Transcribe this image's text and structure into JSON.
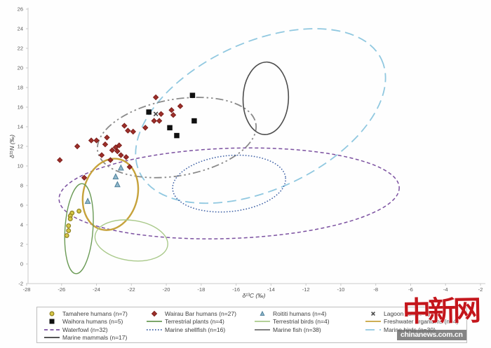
{
  "watermark": {
    "logo_text": "中新网",
    "site_text": "chinanews.com.cn"
  },
  "chart_data": {
    "type": "scatter",
    "title": "",
    "xlabel": "δ¹³C (‰)",
    "ylabel": "δ¹⁵N (‰)",
    "xlim": [
      -28,
      -2
    ],
    "ylim": [
      -2,
      26
    ],
    "xticks": [
      -28,
      -26,
      -24,
      -22,
      -20,
      -18,
      -16,
      -14,
      -12,
      -10,
      -8,
      -6,
      -4,
      -2
    ],
    "yticks": [
      -2,
      0,
      2,
      4,
      6,
      8,
      10,
      12,
      14,
      16,
      18,
      20,
      22,
      24,
      26
    ],
    "grid": false,
    "legend_position": "bottom",
    "series": [
      {
        "id": "tamahere-humans",
        "name": "Tamahere humans (n=7)",
        "marker": "circle",
        "fill": "#d6c84a",
        "stroke": "#8f7f1e",
        "size": 6,
        "points": [
          [
            -25.0,
            5.4
          ],
          [
            -25.4,
            5.2
          ],
          [
            -25.5,
            4.9
          ],
          [
            -25.5,
            4.6
          ],
          [
            -25.6,
            3.9
          ],
          [
            -25.6,
            3.4
          ],
          [
            -25.7,
            2.9
          ]
        ]
      },
      {
        "id": "wairau-bar-humans",
        "name": "Wairau Bar humans (n=27)",
        "marker": "diamond",
        "fill": "#9e2f2a",
        "stroke": "#7c1f1b",
        "size": 7,
        "points": [
          [
            -20.6,
            17.0
          ],
          [
            -19.2,
            16.1
          ],
          [
            -19.7,
            15.7
          ],
          [
            -19.6,
            15.2
          ],
          [
            -20.3,
            15.3
          ],
          [
            -20.7,
            14.6
          ],
          [
            -20.4,
            14.6
          ],
          [
            -21.2,
            13.9
          ],
          [
            -22.4,
            14.1
          ],
          [
            -22.2,
            13.6
          ],
          [
            -21.9,
            13.5
          ],
          [
            -23.4,
            12.9
          ],
          [
            -24.0,
            12.6
          ],
          [
            -24.3,
            12.6
          ],
          [
            -25.1,
            12.0
          ],
          [
            -22.9,
            11.9
          ],
          [
            -22.7,
            12.1
          ],
          [
            -23.1,
            11.6
          ],
          [
            -22.8,
            11.5
          ],
          [
            -22.6,
            11.1
          ],
          [
            -22.3,
            10.9
          ],
          [
            -23.7,
            11.1
          ],
          [
            -26.1,
            10.6
          ],
          [
            -23.2,
            10.6
          ],
          [
            -22.1,
            9.9
          ],
          [
            -24.7,
            8.8
          ],
          [
            -23.5,
            12.2
          ]
        ]
      },
      {
        "id": "roititi-humans",
        "name": "Roititi humans (n=4)",
        "marker": "triangle",
        "fill": "#8fb8cc",
        "stroke": "#4e7f99",
        "size": 8,
        "points": [
          [
            -22.6,
            9.8
          ],
          [
            -22.9,
            8.9
          ],
          [
            -22.8,
            8.1
          ],
          [
            -24.5,
            6.4
          ]
        ]
      },
      {
        "id": "lagoon-fish",
        "name": "Lagoon fish (n=4)",
        "marker": "x",
        "fill": "none",
        "stroke": "#4a4a4a",
        "size": 7,
        "points": [
          [
            -20.6,
            15.3
          ]
        ]
      },
      {
        "id": "waihora-humans",
        "name": "Waihora humans (n=5)",
        "marker": "square",
        "fill": "#101010",
        "stroke": "#101010",
        "size": 6.5,
        "points": [
          [
            -18.5,
            17.2
          ],
          [
            -21.0,
            15.5
          ],
          [
            -18.4,
            14.6
          ],
          [
            -19.8,
            13.9
          ],
          [
            -19.4,
            13.1
          ]
        ]
      }
    ],
    "ellipses": [
      {
        "id": "marine-birds",
        "name": "Marine birds (n=30)",
        "cx": -14.6,
        "cy": 15.1,
        "rx": 7.65,
        "ry": 7.5,
        "rot": -25,
        "color": "#90c8e0",
        "dash": "longdash",
        "sw": 1.8
      },
      {
        "id": "waterfowl",
        "name": "Waterfowl (n=32)",
        "cx": -16.4,
        "cy": 7.2,
        "rx": 9.75,
        "ry": 4.6,
        "rot": -2,
        "color": "#7b50a0",
        "dash": "dashed",
        "sw": 1.5
      },
      {
        "id": "marine-fish",
        "name": "Marine fish (n=38)",
        "cx": -19.4,
        "cy": 12.9,
        "rx": 4.6,
        "ry": 3.9,
        "rot": -10,
        "color": "#8a8a8a",
        "dash": "dashdot",
        "sw": 1.8
      },
      {
        "id": "marine-shellfish",
        "name": "Marine shellfish (n=16)",
        "cx": -16.4,
        "cy": 8.2,
        "rx": 3.25,
        "ry": 2.85,
        "rot": -6,
        "color": "#3c5fa5",
        "dash": "dotted",
        "sw": 1.5
      },
      {
        "id": "marine-mammals",
        "name": "Marine mammals (n=17)",
        "cx": -14.3,
        "cy": 16.9,
        "rx": 1.3,
        "ry": 3.7,
        "rot": 2,
        "color": "#4d4d4d",
        "dash": "solid",
        "sw": 1.6
      },
      {
        "id": "freshwater-organisms",
        "name": "Freshwater organisms (n=4)",
        "cx": -23.2,
        "cy": 7.1,
        "rx": 1.55,
        "ry": 3.7,
        "rot": 15,
        "color": "#c6a23b",
        "dash": "solid",
        "sw": 2.4
      },
      {
        "id": "terrestrial-plants",
        "name": "Terrestrial plants (n=4)",
        "cx": -25.0,
        "cy": 3.6,
        "rx": 0.8,
        "ry": 4.6,
        "rot": 4,
        "color": "#6a9a55",
        "dash": "solid",
        "sw": 1.4
      },
      {
        "id": "terrestrial-birds",
        "name": "Terrestrial birds (n=4)",
        "cx": -22.0,
        "cy": 2.4,
        "rx": 2.1,
        "ry": 2.05,
        "rot": 8,
        "color": "#a9c98a",
        "dash": "solid",
        "sw": 1.4
      }
    ],
    "legend": [
      {
        "label": "Tamahere humans (n=7)",
        "swatch": "marker",
        "marker": "circle",
        "fill": "#d6c84a",
        "stroke": "#8f7f1e"
      },
      {
        "label": "Wairau Bar humans (n=27)",
        "swatch": "marker",
        "marker": "diamond",
        "fill": "#9e2f2a",
        "stroke": "#7c1f1b"
      },
      {
        "label": "Roititi humans (n=4)",
        "swatch": "marker",
        "marker": "triangle",
        "fill": "#8fb8cc",
        "stroke": "#4e7f99"
      },
      {
        "label": "Lagoon fish (n=4)",
        "swatch": "marker",
        "marker": "x",
        "fill": "none",
        "stroke": "#4a4a4a"
      },
      {
        "label": "Waihora humans (n=5)",
        "swatch": "marker",
        "marker": "square",
        "fill": "#101010",
        "stroke": "#101010"
      },
      {
        "label": "Terrestrial plants (n=4)",
        "swatch": "line",
        "dash": "solid",
        "color": "#6a9a55"
      },
      {
        "label": "Terrestrial birds (n=4)",
        "swatch": "line",
        "dash": "solid",
        "color": "#a9c98a"
      },
      {
        "label": "Freshwater organisms (n=4)",
        "swatch": "line",
        "dash": "solid",
        "color": "#c6a23b"
      },
      {
        "label": "Waterfowl (n=32)",
        "swatch": "line",
        "dash": "dashed",
        "color": "#7b50a0"
      },
      {
        "label": "Marine shellfish (n=16)",
        "swatch": "line",
        "dash": "dotted",
        "color": "#3c5fa5"
      },
      {
        "label": "Marine fish (n=38)",
        "swatch": "line",
        "dash": "solid",
        "color": "#6e6e6e"
      },
      {
        "label": "Marine birds (n=30)",
        "swatch": "line",
        "dash": "longdash",
        "color": "#90c8e0"
      },
      {
        "label": "Marine mammals (n=17)",
        "swatch": "line",
        "dash": "solid",
        "color": "#3d3d3d"
      }
    ]
  }
}
